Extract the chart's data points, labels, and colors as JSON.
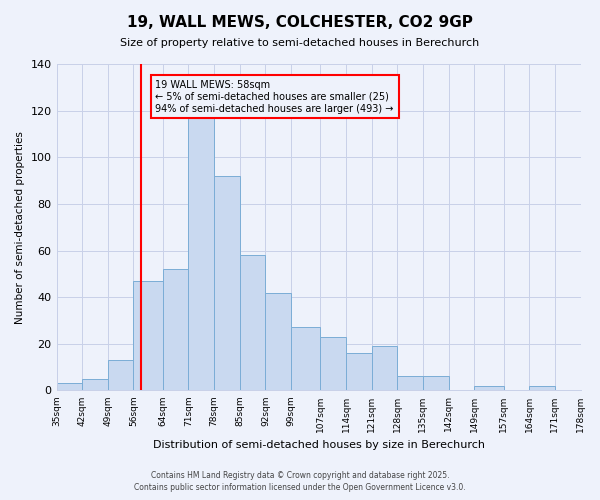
{
  "title": "19, WALL MEWS, COLCHESTER, CO2 9GP",
  "subtitle": "Size of property relative to semi-detached houses in Berechurch",
  "xlabel": "Distribution of semi-detached houses by size in Berechurch",
  "ylabel": "Number of semi-detached properties",
  "bin_labels": [
    "35sqm",
    "42sqm",
    "49sqm",
    "56sqm",
    "64sqm",
    "71sqm",
    "78sqm",
    "85sqm",
    "92sqm",
    "99sqm",
    "107sqm",
    "114sqm",
    "121sqm",
    "128sqm",
    "135sqm",
    "142sqm",
    "149sqm",
    "157sqm",
    "164sqm",
    "171sqm",
    "178sqm"
  ],
  "bin_edges": [
    35,
    42,
    49,
    56,
    64,
    71,
    78,
    85,
    92,
    99,
    107,
    114,
    121,
    128,
    135,
    142,
    149,
    157,
    164,
    171,
    178
  ],
  "bar_values": [
    3,
    5,
    13,
    47,
    52,
    118,
    92,
    58,
    42,
    27,
    23,
    16,
    19,
    6,
    6,
    0,
    2,
    0,
    2,
    0
  ],
  "bar_color": "#c9d9f0",
  "bar_edgecolor": "#7badd6",
  "vline_x": 58,
  "vline_color": "red",
  "ylim": [
    0,
    140
  ],
  "yticks": [
    0,
    20,
    40,
    60,
    80,
    100,
    120,
    140
  ],
  "annotation_title": "19 WALL MEWS: 58sqm",
  "annotation_line1": "← 5% of semi-detached houses are smaller (25)",
  "annotation_line2": "94% of semi-detached houses are larger (493) →",
  "annotation_box_edgecolor": "red",
  "footer1": "Contains HM Land Registry data © Crown copyright and database right 2025.",
  "footer2": "Contains public sector information licensed under the Open Government Licence v3.0.",
  "background_color": "#eef2fb",
  "grid_color": "#c8d0e8"
}
